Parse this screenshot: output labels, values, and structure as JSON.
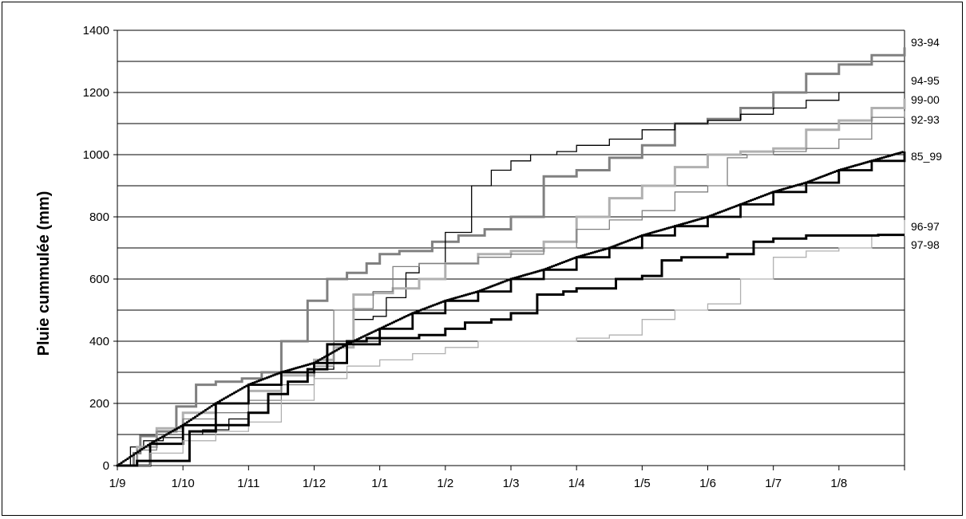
{
  "chart_data": {
    "type": "line",
    "title": "",
    "xlabel": "",
    "ylabel": "Pluie cummulée (mm)",
    "ylim": [
      0,
      1400
    ],
    "y_ticks": [
      0,
      200,
      400,
      600,
      800,
      1000,
      1200,
      1400
    ],
    "y_gridlines": [
      100,
      200,
      300,
      400,
      500,
      600,
      700,
      800,
      900,
      1000,
      1100,
      1200,
      1300
    ],
    "x_unit": "months since 1/9",
    "xlim": [
      0,
      12
    ],
    "x_ticks": [
      "1/9",
      "1/10",
      "1/11",
      "1/12",
      "1/1",
      "1/2",
      "1/3",
      "1/4",
      "1/5",
      "1/6",
      "1/7",
      "1/8"
    ],
    "grid": true,
    "legend": "labels at right end of lines",
    "series": [
      {
        "name": "93-94",
        "color": "#808080",
        "width": 3,
        "x": [
          0,
          0.25,
          0.35,
          0.6,
          0.9,
          1.2,
          1.5,
          1.9,
          2.2,
          2.5,
          2.9,
          3.2,
          3.5,
          3.8,
          4.0,
          4.3,
          4.8,
          5.2,
          5.6,
          6.0,
          6.5,
          7.0,
          7.5,
          8.0,
          8.5,
          9.0,
          9.5,
          10.0,
          10.5,
          11.0,
          11.5,
          12.0
        ],
        "y": [
          0,
          40,
          95,
          110,
          190,
          260,
          270,
          280,
          300,
          400,
          530,
          600,
          620,
          650,
          680,
          690,
          720,
          740,
          760,
          800,
          930,
          950,
          990,
          1030,
          1100,
          1115,
          1150,
          1200,
          1260,
          1290,
          1320,
          1345
        ]
      },
      {
        "name": "94-95",
        "color": "#000000",
        "width": 1.3,
        "x": [
          0,
          0.2,
          0.4,
          0.7,
          1.0,
          1.3,
          1.7,
          2.0,
          2.5,
          3.0,
          3.3,
          3.6,
          3.9,
          4.1,
          4.4,
          4.6,
          5.0,
          5.4,
          5.7,
          6.0,
          6.3,
          6.7,
          7.0,
          7.5,
          8.0,
          8.5,
          9.0,
          9.5,
          10.0,
          10.5,
          11.0,
          11.5,
          12.0
        ],
        "y": [
          0,
          60,
          80,
          90,
          100,
          115,
          150,
          240,
          300,
          310,
          400,
          470,
          480,
          540,
          620,
          650,
          750,
          900,
          950,
          980,
          1000,
          1010,
          1030,
          1050,
          1080,
          1100,
          1110,
          1130,
          1150,
          1175,
          1200,
          1200,
          1200
        ]
      },
      {
        "name": "99-00",
        "color": "#b0b0b0",
        "width": 3,
        "x": [
          0,
          0.3,
          0.6,
          1.0,
          1.5,
          2.0,
          2.5,
          3.0,
          3.3,
          3.6,
          3.9,
          4.2,
          4.6,
          5.0,
          5.5,
          6.0,
          6.5,
          7.0,
          7.5,
          8.0,
          8.5,
          9.0,
          9.5,
          10.0,
          10.5,
          11.0,
          11.5,
          12.0
        ],
        "y": [
          0,
          60,
          120,
          170,
          200,
          240,
          290,
          340,
          380,
          550,
          555,
          570,
          600,
          650,
          680,
          690,
          720,
          800,
          860,
          900,
          960,
          1000,
          1010,
          1020,
          1080,
          1110,
          1150,
          1180
        ]
      },
      {
        "name": "92-93",
        "color": "#808080",
        "width": 1.3,
        "x": [
          0,
          0.3,
          0.6,
          1.0,
          1.5,
          2.0,
          2.5,
          3.0,
          3.3,
          3.6,
          3.9,
          4.2,
          4.6,
          5.0,
          5.5,
          6.0,
          6.5,
          7.0,
          7.5,
          8.0,
          8.5,
          9.0,
          9.3,
          9.6,
          10.0,
          10.5,
          11.0,
          11.5,
          12.0
        ],
        "y": [
          0,
          50,
          110,
          150,
          170,
          210,
          260,
          320,
          500,
          505,
          560,
          640,
          650,
          650,
          670,
          680,
          700,
          760,
          790,
          820,
          880,
          900,
          990,
          1000,
          1010,
          1020,
          1050,
          1120,
          1140
        ]
      },
      {
        "name": "85_99",
        "color": "#000000",
        "width": 2.8,
        "marker": "dots",
        "x": [
          0,
          0.5,
          1.0,
          1.5,
          2.0,
          2.5,
          3.0,
          3.5,
          4.0,
          4.5,
          5.0,
          5.5,
          6.0,
          6.5,
          7.0,
          7.5,
          8.0,
          8.5,
          9.0,
          9.5,
          10.0,
          10.5,
          11.0,
          11.5,
          12.0
        ],
        "y": [
          0,
          70,
          130,
          200,
          260,
          300,
          330,
          390,
          440,
          490,
          530,
          560,
          600,
          630,
          670,
          700,
          740,
          770,
          800,
          840,
          880,
          910,
          950,
          980,
          1010
        ]
      },
      {
        "name": "96-97",
        "color": "#b0b0b0",
        "width": 1.3,
        "x": [
          0,
          0.5,
          1.0,
          1.5,
          2.0,
          2.5,
          3.0,
          3.5,
          4.0,
          4.5,
          5.0,
          5.5,
          6.0,
          6.5,
          7.0,
          7.5,
          8.0,
          8.5,
          9.0,
          9.5,
          10.0,
          10.5,
          11.0,
          11.5,
          12.0
        ],
        "y": [
          0,
          40,
          80,
          110,
          140,
          210,
          280,
          320,
          340,
          360,
          380,
          400,
          400,
          400,
          410,
          420,
          470,
          500,
          520,
          600,
          670,
          690,
          700,
          740,
          790
        ]
      },
      {
        "name": "97-98",
        "color": "#000000",
        "width": 3,
        "x": [
          0,
          0.3,
          0.6,
          1.0,
          1.1,
          1.5,
          2.0,
          2.3,
          2.6,
          2.9,
          3.2,
          3.5,
          3.8,
          4.0,
          4.3,
          4.6,
          5.0,
          5.3,
          5.7,
          6.0,
          6.4,
          6.8,
          7.0,
          7.3,
          7.6,
          8.0,
          8.3,
          8.6,
          9.0,
          9.3,
          9.7,
          10.0,
          10.5,
          11.0,
          11.3,
          11.6,
          12.0
        ],
        "y": [
          0,
          15,
          15,
          15,
          110,
          130,
          170,
          230,
          270,
          310,
          390,
          400,
          410,
          410,
          410,
          420,
          440,
          460,
          470,
          490,
          550,
          560,
          570,
          570,
          600,
          610,
          660,
          670,
          670,
          680,
          720,
          730,
          740,
          740,
          740,
          742,
          742
        ]
      }
    ]
  }
}
